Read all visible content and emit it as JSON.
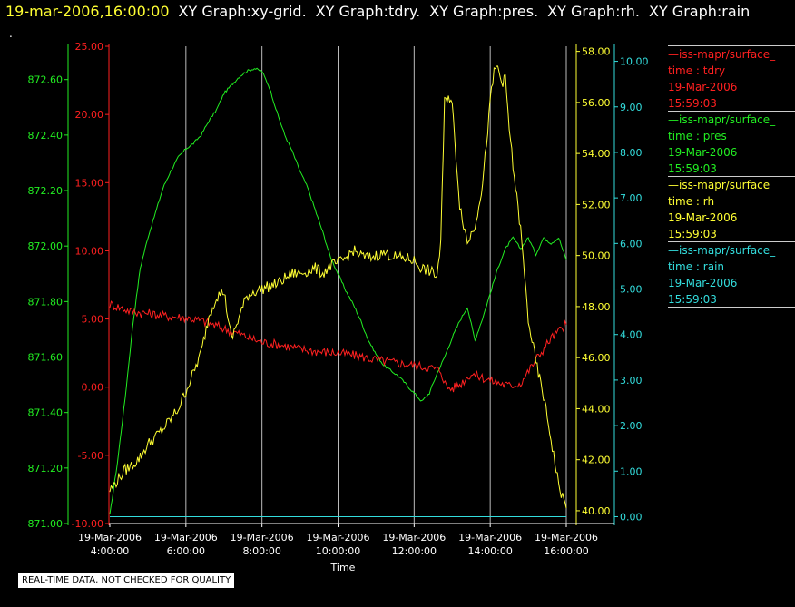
{
  "header": {
    "timestamp": "19-mar-2006,16:00:00",
    "graph_titles": [
      "XY Graph:xy-grid.",
      "XY Graph:tdry.",
      "XY Graph:pres.",
      "XY Graph:rh.",
      "XY Graph:rain"
    ]
  },
  "dot": ".",
  "colors": {
    "tdry": "#ff2020",
    "pres": "#22ee22",
    "rh": "#ffff33",
    "rain": "#33dddd",
    "grid": "#bbbbbb"
  },
  "legend": [
    {
      "name": "—iss-mapr/surface_",
      "var": "time : tdry",
      "date": "19-Mar-2006",
      "time": "15:59:03",
      "color": "#ff2020"
    },
    {
      "name": "—iss-mapr/surface_",
      "var": "time : pres",
      "date": "19-Mar-2006",
      "time": "15:59:03",
      "color": "#22ee22"
    },
    {
      "name": "—iss-mapr/surface_",
      "var": "time : rh",
      "date": "19-Mar-2006",
      "time": "15:59:03",
      "color": "#ffff33"
    },
    {
      "name": "—iss-mapr/surface_",
      "var": "time : rain",
      "date": "19-Mar-2006",
      "time": "15:59:03",
      "color": "#33dddd"
    }
  ],
  "notice": "REAL-TIME DATA, NOT CHECKED FOR QUALITY",
  "chart_data": {
    "type": "line",
    "xlabel": "Time",
    "x_ticks": [
      {
        "d": "19-Mar-2006",
        "t": "4:00:00",
        "h": 4
      },
      {
        "d": "19-Mar-2006",
        "t": "6:00:00",
        "h": 6
      },
      {
        "d": "19-Mar-2006",
        "t": "8:00:00",
        "h": 8
      },
      {
        "d": "19-Mar-2006",
        "t": "10:00:00",
        "h": 10
      },
      {
        "d": "19-Mar-2006",
        "t": "12:00:00",
        "h": 12
      },
      {
        "d": "19-Mar-2006",
        "t": "14:00:00",
        "h": 14
      },
      {
        "d": "19-Mar-2006",
        "t": "16:00:00",
        "h": 16
      }
    ],
    "xlim": [
      4,
      16
    ],
    "grid": true,
    "axes": {
      "pres": {
        "range": [
          871.0,
          872.72
        ],
        "ticks": [
          "871.00",
          "871.20",
          "871.40",
          "871.60",
          "871.80",
          "872.00",
          "872.20",
          "872.40",
          "872.60"
        ]
      },
      "tdry": {
        "range": [
          -10,
          25
        ],
        "ticks": [
          "-10.00",
          "-5.00",
          "0.00",
          "5.00",
          "10.00",
          "15.00",
          "20.00",
          "25.00"
        ]
      },
      "rh": {
        "range": [
          39.5,
          58.2
        ],
        "ticks": [
          "40.00",
          "42.00",
          "44.00",
          "46.00",
          "48.00",
          "50.00",
          "52.00",
          "54.00",
          "56.00",
          "58.00"
        ]
      },
      "rain": {
        "range": [
          -0.15,
          10.33
        ],
        "ticks": [
          "0.00",
          "1.00",
          "2.00",
          "3.00",
          "4.00",
          "5.00",
          "6.00",
          "7.00",
          "8.00",
          "9.00",
          "10.00"
        ]
      }
    },
    "series": [
      {
        "key": "pres",
        "axis": "pres",
        "x": [
          4.0,
          4.2,
          4.4,
          4.6,
          4.8,
          5.0,
          5.2,
          5.4,
          5.6,
          5.8,
          6.0,
          6.2,
          6.4,
          6.6,
          6.8,
          7.0,
          7.2,
          7.4,
          7.6,
          7.8,
          8.0,
          8.2,
          8.4,
          8.6,
          8.8,
          9.0,
          9.2,
          9.4,
          9.6,
          9.8,
          10.0,
          10.2,
          10.4,
          10.6,
          10.8,
          11.0,
          11.2,
          11.4,
          11.6,
          11.8,
          12.0,
          12.2,
          12.4,
          12.6,
          12.8,
          13.0,
          13.2,
          13.4,
          13.6,
          13.8,
          14.0,
          14.2,
          14.4,
          14.6,
          14.8,
          15.0,
          15.2,
          15.4,
          15.6,
          15.8,
          16.0
        ],
        "y": [
          871.03,
          871.22,
          871.45,
          871.71,
          871.92,
          872.03,
          872.12,
          872.21,
          872.27,
          872.32,
          872.35,
          872.37,
          872.4,
          872.45,
          872.49,
          872.55,
          872.58,
          872.61,
          872.63,
          872.64,
          872.63,
          872.57,
          872.48,
          872.4,
          872.34,
          872.27,
          872.21,
          872.13,
          872.05,
          871.96,
          871.9,
          871.84,
          871.79,
          871.73,
          871.66,
          871.61,
          871.57,
          871.55,
          871.53,
          871.5,
          871.47,
          871.44,
          871.47,
          871.54,
          871.6,
          871.67,
          871.73,
          871.78,
          871.66,
          871.74,
          871.83,
          871.92,
          871.99,
          872.03,
          871.99,
          872.03,
          871.97,
          872.03,
          872.01,
          872.03,
          871.95
        ],
        "jitter": 0.025
      },
      {
        "key": "tdry",
        "axis": "tdry",
        "x": [
          4.0,
          4.5,
          5.0,
          5.5,
          6.0,
          6.5,
          7.0,
          7.5,
          8.0,
          8.5,
          9.0,
          9.5,
          10.0,
          10.5,
          11.0,
          11.5,
          12.0,
          12.5,
          12.7,
          12.85,
          13.0,
          13.2,
          13.5,
          14.0,
          14.5,
          14.8,
          15.2,
          15.6,
          16.0
        ],
        "y": [
          6.1,
          5.6,
          5.4,
          5.2,
          5.1,
          4.8,
          4.3,
          3.8,
          3.3,
          3.1,
          2.8,
          2.6,
          2.5,
          2.3,
          2.0,
          1.8,
          1.6,
          1.4,
          1.2,
          0.0,
          -0.1,
          0.2,
          1.0,
          0.5,
          0.1,
          0.3,
          2.0,
          3.6,
          4.6
        ],
        "jitter": 0.1
      },
      {
        "key": "rh",
        "axis": "rh",
        "x": [
          4.0,
          4.2,
          4.4,
          4.6,
          4.8,
          5.0,
          5.2,
          5.4,
          5.6,
          5.8,
          6.0,
          6.2,
          6.4,
          6.6,
          6.8,
          7.0,
          7.2,
          7.4,
          7.6,
          7.8,
          8.0,
          8.2,
          8.4,
          8.6,
          8.8,
          9.0,
          9.2,
          9.4,
          9.6,
          9.8,
          10.0,
          10.2,
          10.4,
          10.6,
          10.8,
          11.0,
          11.2,
          11.4,
          11.6,
          11.8,
          12.0,
          12.2,
          12.4,
          12.5,
          12.6,
          12.7,
          12.8,
          12.9,
          13.0,
          13.2,
          13.4,
          13.6,
          13.8,
          14.0,
          14.1,
          14.2,
          14.3,
          14.4,
          14.5,
          14.6,
          14.8,
          15.0,
          15.2,
          15.4,
          15.6,
          15.8,
          16.0
        ],
        "y": [
          40.8,
          41.2,
          41.6,
          41.8,
          42.1,
          42.6,
          42.9,
          43.2,
          43.6,
          44.0,
          44.7,
          45.4,
          46.2,
          47.6,
          48.4,
          48.6,
          46.7,
          47.6,
          48.4,
          48.6,
          48.7,
          48.8,
          48.9,
          49.1,
          49.3,
          49.3,
          49.4,
          49.5,
          49.3,
          49.6,
          49.7,
          49.9,
          50.2,
          50.0,
          49.9,
          50.0,
          50.1,
          50.0,
          49.9,
          49.9,
          49.8,
          49.5,
          49.4,
          49.3,
          49.2,
          50.5,
          56.0,
          56.3,
          55.9,
          52.0,
          50.5,
          51.2,
          52.8,
          56.0,
          57.2,
          57.4,
          56.8,
          56.9,
          55.0,
          53.5,
          51.0,
          47.5,
          45.8,
          44.5,
          42.8,
          41.0,
          40.1
        ],
        "jitter": 0.12
      },
      {
        "key": "rain",
        "axis": "rain",
        "x": [
          4,
          16
        ],
        "y": [
          0.0,
          0.0
        ],
        "jitter": 0
      }
    ]
  }
}
